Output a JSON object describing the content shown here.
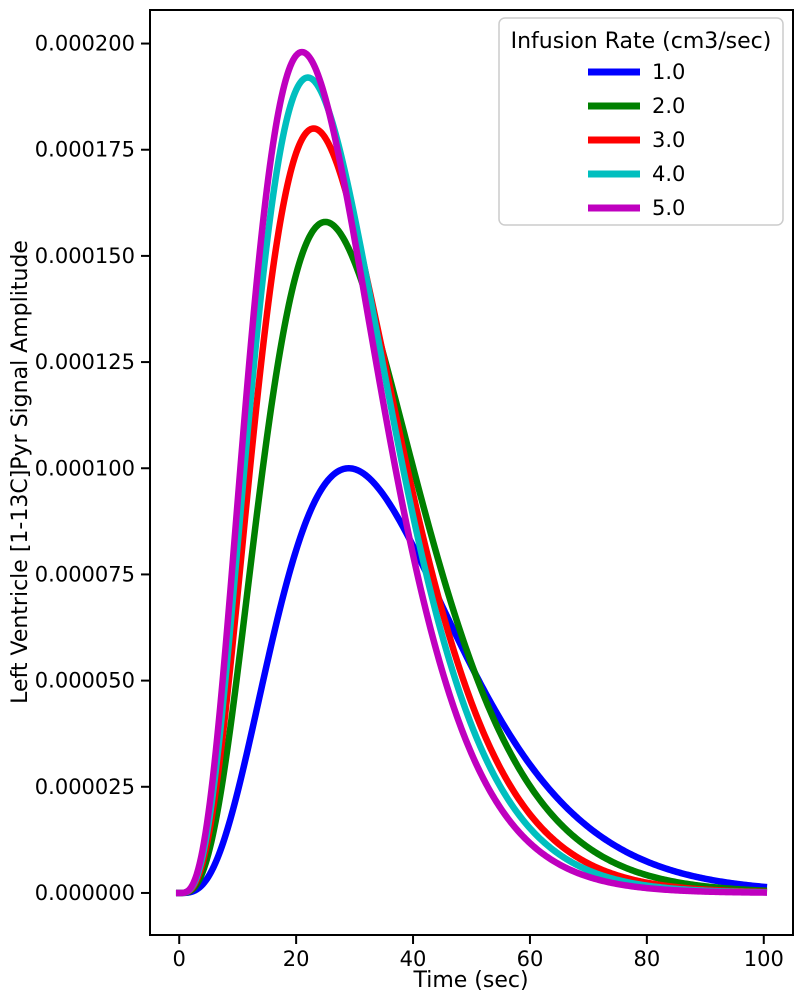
{
  "chart_data": {
    "type": "line",
    "title": "",
    "xlabel": "Time (sec)",
    "ylabel": "Left Ventricle [1-13C]Pyr Signal Amplitude",
    "xlim": [
      -5,
      105
    ],
    "ylim": [
      -9.9e-06,
      0.0002079
    ],
    "grid": false,
    "x_ticks": {
      "values": [
        0,
        20,
        40,
        60,
        80,
        100
      ],
      "labels": [
        "0",
        "20",
        "40",
        "60",
        "80",
        "100"
      ]
    },
    "y_ticks": {
      "values": [
        0.0,
        2.5e-05,
        5e-05,
        7.5e-05,
        0.0001,
        0.000125,
        0.00015,
        0.000175,
        0.0002
      ],
      "labels": [
        "0.000000",
        "0.000025",
        "0.000050",
        "0.000075",
        "0.000100",
        "0.000125",
        "0.000150",
        "0.000175",
        "0.000200"
      ]
    },
    "legend": {
      "title": "Infusion Rate (cm3/sec)",
      "position": "upper right",
      "entries": [
        "1.0",
        "2.0",
        "3.0",
        "4.0",
        "5.0"
      ]
    },
    "model": "gamma-variate bolus curve: y(t) = peak_value * (t/peak_time)^alpha * exp(alpha*(1 - t/peak_time))",
    "alpha": 3.5,
    "x_samples_sec": [
      0,
      10,
      20,
      30,
      40,
      50,
      60,
      70,
      80,
      90,
      100
    ],
    "series": [
      {
        "name": "1.0",
        "color": "#0000ff",
        "peak_time_sec": 29,
        "peak_value": 0.0001,
        "values": [
          0,
          2.39e-05,
          8.07e-05,
          9.98e-05,
          8.17e-05,
          5.34e-05,
          3.02e-05,
          1.55e-05,
          7.4e-06,
          3.3e-06,
          1.5e-06
        ]
      },
      {
        "name": "2.0",
        "color": "#008000",
        "peak_time_sec": 25,
        "peak_value": 0.000158,
        "values": [
          0,
          5.22e-05,
          0.0001457,
          0.0001485,
          0.0001002,
          5.4e-05,
          2.52e-05,
          1.07e-05,
          4.2e-06,
          1.6e-06,
          6e-07
        ]
      },
      {
        "name": "3.0",
        "color": "#ff0000",
        "peak_time_sec": 23,
        "peak_value": 0.00018,
        "values": [
          0,
          7.05e-05,
          0.0001742,
          0.0001572,
          9.4e-05,
          4.48e-05,
          1.85e-05,
          6.9e-06,
          2.4e-06,
          8e-07,
          3e-07
        ]
      },
      {
        "name": "4.0",
        "color": "#00bfbf",
        "peak_time_sec": 22,
        "peak_value": 0.000192,
        "values": [
          0,
          8.2e-05,
          0.0001891,
          0.0001592,
          8.88e-05,
          3.95e-05,
          1.52e-05,
          5.3e-06,
          1.7e-06,
          5e-07,
          2e-07
        ]
      },
      {
        "name": "5.0",
        "color": "#bf00bf",
        "peak_time_sec": 21,
        "peak_value": 0.000198,
        "values": [
          0,
          9.23e-05,
          0.0001972,
          0.0001539,
          7.96e-05,
          3.28e-05,
          1.17e-05,
          3.8e-06,
          1.1e-06,
          3e-07,
          1e-07
        ]
      }
    ]
  }
}
